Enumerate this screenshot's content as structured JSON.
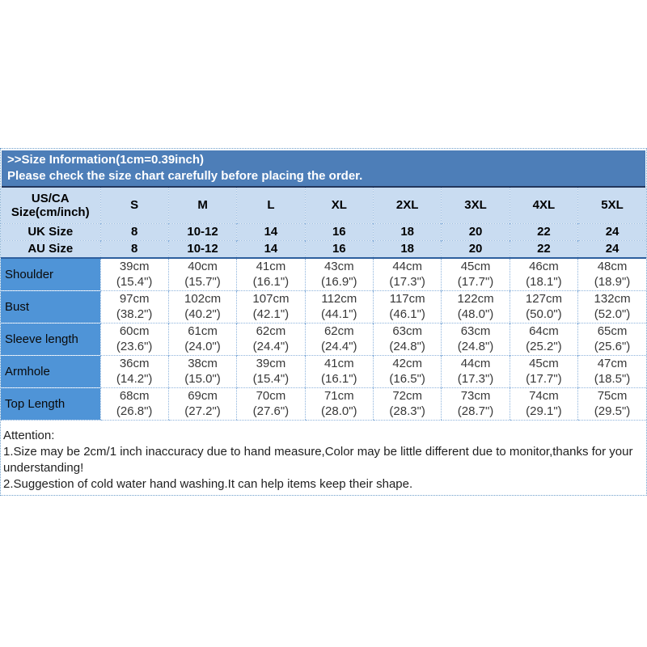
{
  "title": {
    "line1": ">>Size Information(1cm=0.39inch)",
    "line2": "Please check the size chart carefully before placing the order."
  },
  "size_chart": {
    "corner_label": "US/CA Size(cm/inch)",
    "sizes": [
      "S",
      "M",
      "L",
      "XL",
      "2XL",
      "3XL",
      "4XL",
      "5XL"
    ],
    "uk_label": "UK Size",
    "uk_sizes": [
      "8",
      "10-12",
      "14",
      "16",
      "18",
      "20",
      "22",
      "24"
    ],
    "au_label": "AU Size",
    "au_sizes": [
      "8",
      "10-12",
      "14",
      "16",
      "18",
      "20",
      "22",
      "24"
    ],
    "measurements": [
      {
        "label": "Shoulder",
        "cells": [
          [
            "39cm",
            "(15.4\")"
          ],
          [
            "40cm",
            "(15.7\")"
          ],
          [
            "41cm",
            "(16.1\")"
          ],
          [
            "43cm",
            "(16.9\")"
          ],
          [
            "44cm",
            "(17.3\")"
          ],
          [
            "45cm",
            "(17.7\")"
          ],
          [
            "46cm",
            "(18.1\")"
          ],
          [
            "48cm",
            "(18.9\")"
          ]
        ]
      },
      {
        "label": "Bust",
        "cells": [
          [
            "97cm",
            "(38.2\")"
          ],
          [
            "102cm",
            "(40.2\")"
          ],
          [
            "107cm",
            "(42.1\")"
          ],
          [
            "112cm",
            "(44.1\")"
          ],
          [
            "117cm",
            "(46.1\")"
          ],
          [
            "122cm",
            "(48.0\")"
          ],
          [
            "127cm",
            "(50.0\")"
          ],
          [
            "132cm",
            "(52.0\")"
          ]
        ]
      },
      {
        "label": "Sleeve length",
        "cells": [
          [
            "60cm",
            "(23.6\")"
          ],
          [
            "61cm",
            "(24.0\")"
          ],
          [
            "62cm",
            "(24.4\")"
          ],
          [
            "62cm",
            "(24.4\")"
          ],
          [
            "63cm",
            "(24.8\")"
          ],
          [
            "63cm",
            "(24.8\")"
          ],
          [
            "64cm",
            "(25.2\")"
          ],
          [
            "65cm",
            "(25.6\")"
          ]
        ]
      },
      {
        "label": "Armhole",
        "cells": [
          [
            "36cm",
            "(14.2\")"
          ],
          [
            "38cm",
            "(15.0\")"
          ],
          [
            "39cm",
            "(15.4\")"
          ],
          [
            "41cm",
            "(16.1\")"
          ],
          [
            "42cm",
            "(16.5\")"
          ],
          [
            "44cm",
            "(17.3\")"
          ],
          [
            "45cm",
            "(17.7\")"
          ],
          [
            "47cm",
            "(18.5\")"
          ]
        ]
      },
      {
        "label": "Top Length",
        "cells": [
          [
            "68cm",
            "(26.8\")"
          ],
          [
            "69cm",
            "(27.2\")"
          ],
          [
            "70cm",
            "(27.6\")"
          ],
          [
            "71cm",
            "(28.0\")"
          ],
          [
            "72cm",
            "(28.3\")"
          ],
          [
            "73cm",
            "(28.7\")"
          ],
          [
            "74cm",
            "(29.1\")"
          ],
          [
            "75cm",
            "(29.5\")"
          ]
        ]
      }
    ]
  },
  "attention": {
    "heading": "Attention:",
    "note1": "1.Size may be 2cm/1 inch inaccuracy due to hand measure,Color may be little different due to monitor,thanks for your understanding!",
    "note2": "2.Suggestion of cold water hand washing.It can help items keep their shape."
  },
  "colors": {
    "title_bar_bg": "#4d7eb8",
    "title_text": "#ffffff",
    "header_bg": "#c9dcf1",
    "label_column_bg": "#4f94d7",
    "dotted_border": "#8db3dc",
    "heavy_border": "#2e5f9e",
    "title_bottom_border": "#22365c",
    "data_text": "#383838"
  }
}
